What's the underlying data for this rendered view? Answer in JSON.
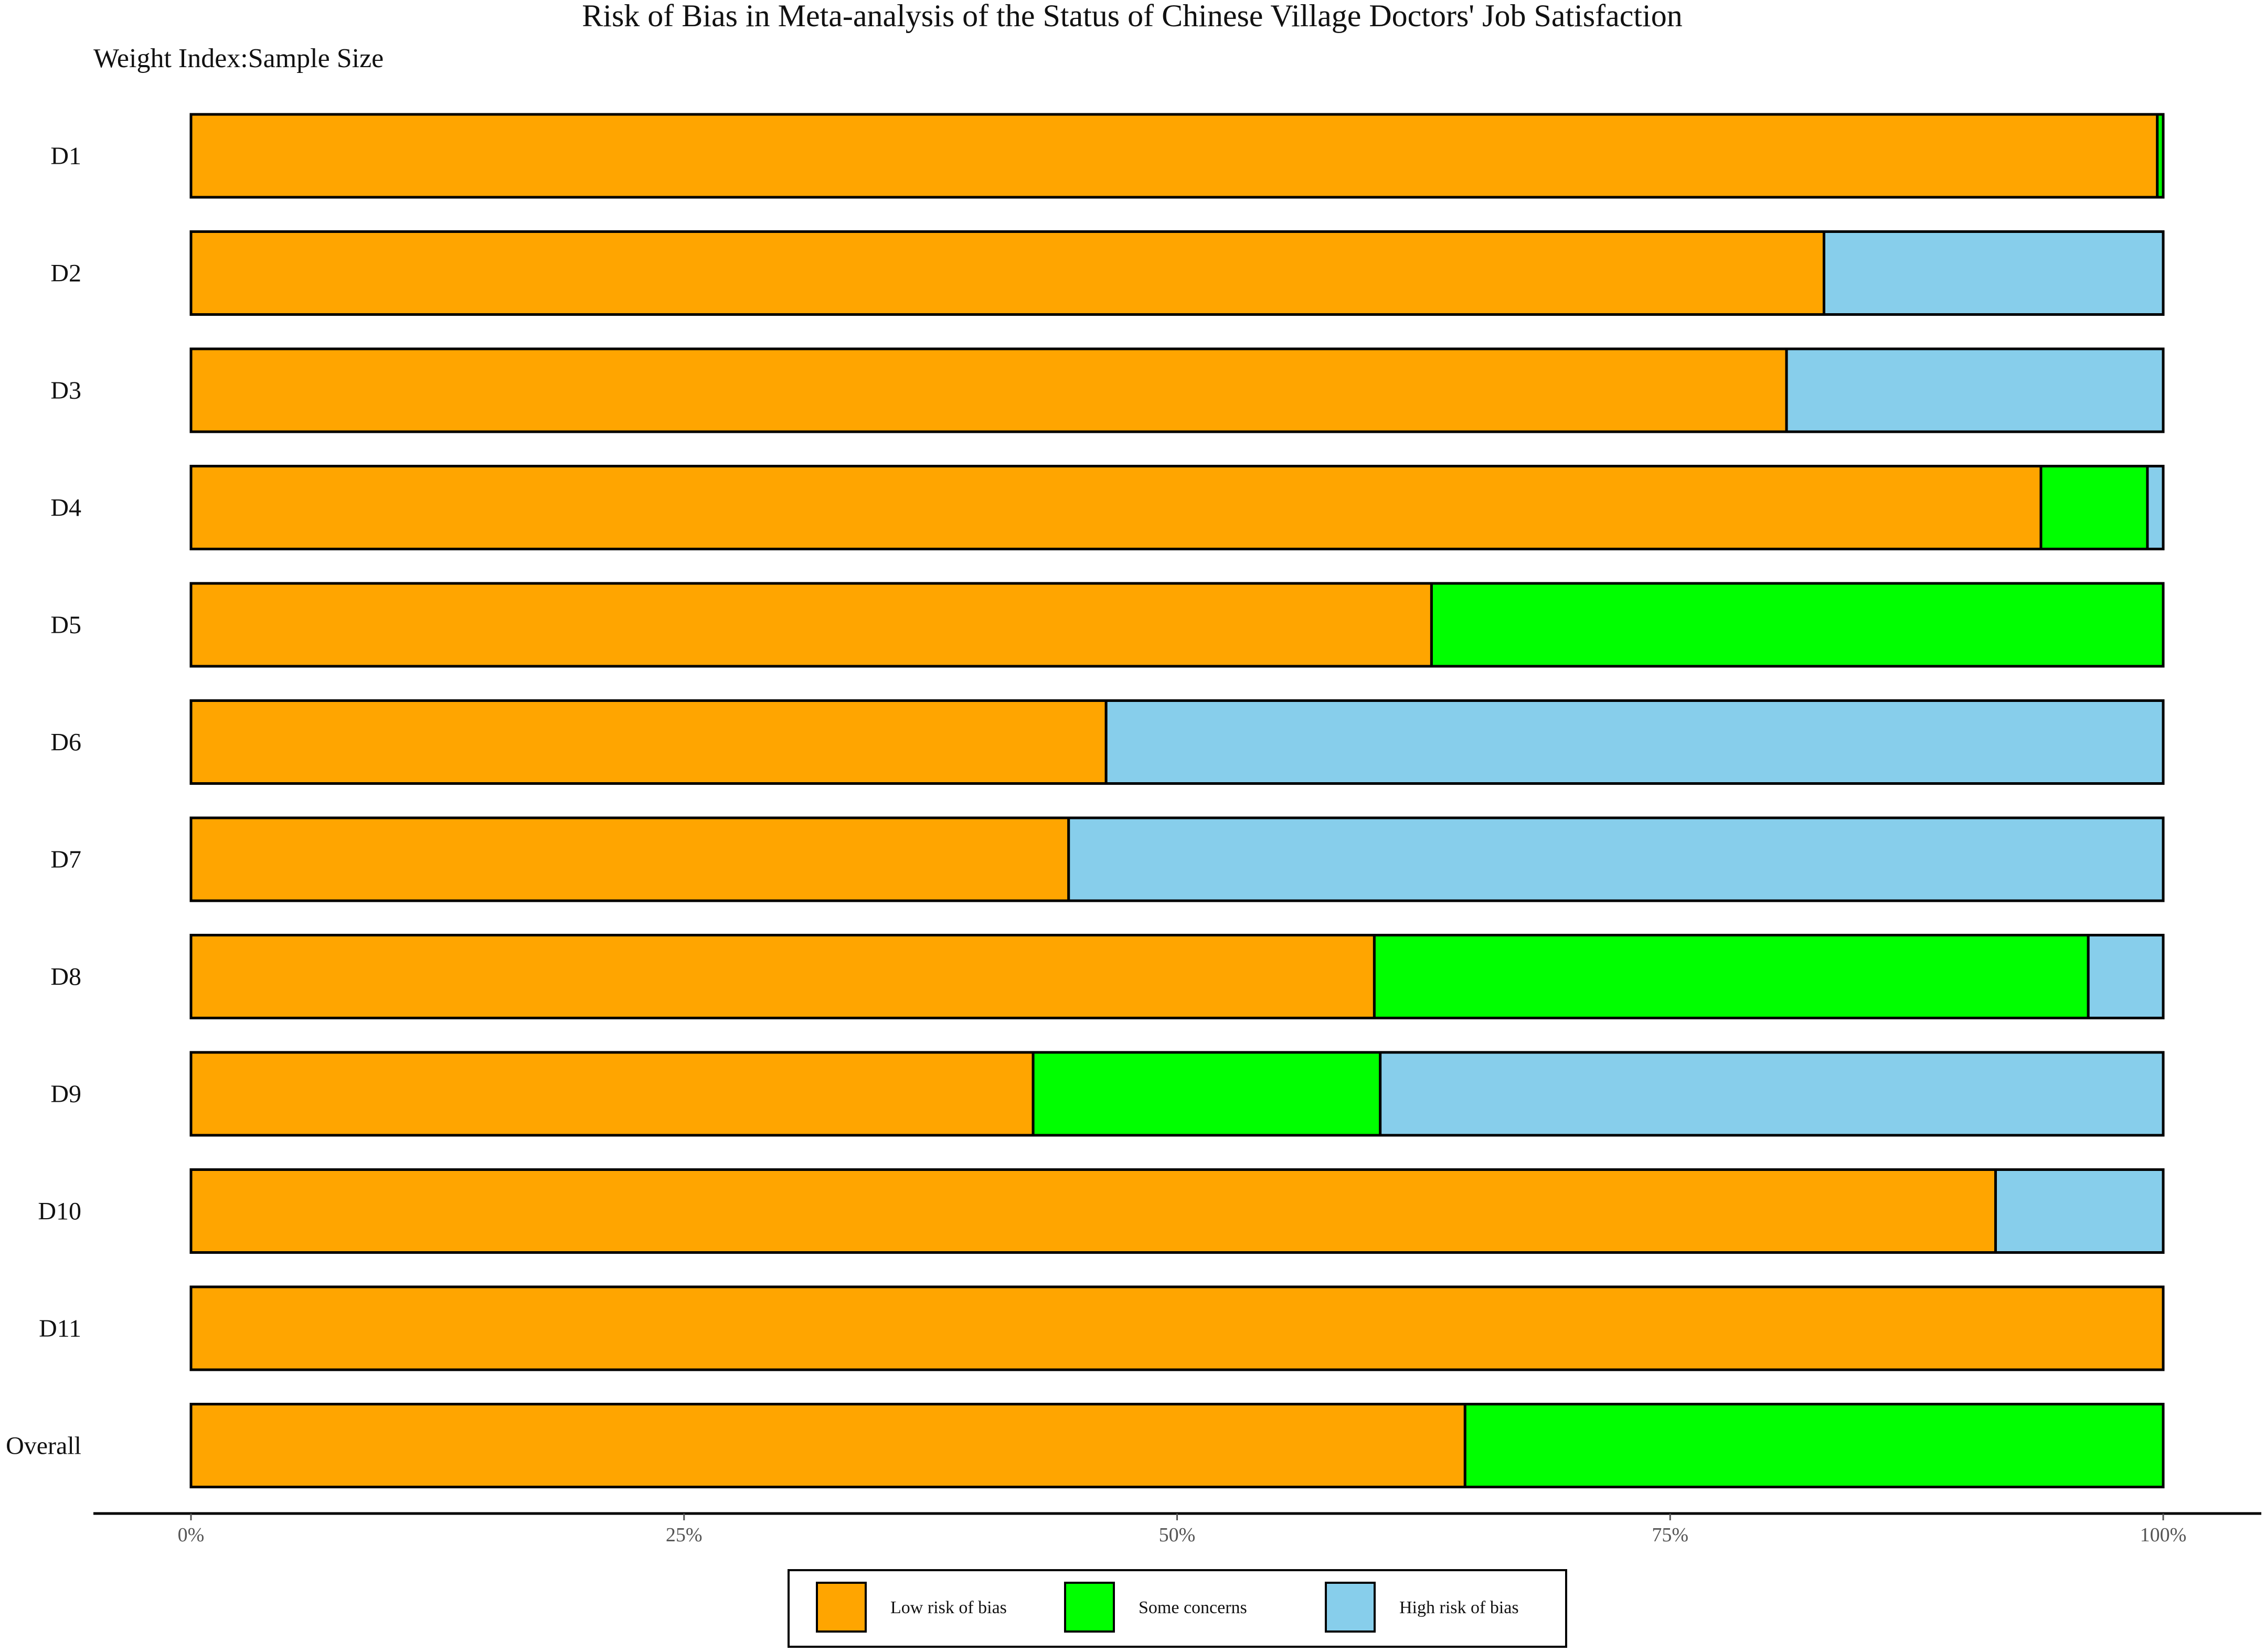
{
  "chart_data": {
    "type": "bar",
    "orientation": "horizontal",
    "stacked": true,
    "title": "Risk of Bias in Meta-analysis of the Status of Chinese Village Doctors' Job Satisfaction",
    "subtitle": "Weight Index:Sample Size",
    "categories": [
      "D1",
      "D2",
      "D3",
      "D4",
      "D5",
      "D6",
      "D7",
      "D8",
      "D9",
      "D10",
      "D11",
      "Overall"
    ],
    "series": [
      {
        "name": "Low risk of bias",
        "color": "#FFA500",
        "values": [
          99.7,
          82.8,
          80.9,
          93.8,
          62.9,
          46.4,
          44.5,
          60.0,
          42.7,
          91.5,
          100.0,
          64.6
        ]
      },
      {
        "name": "Some concerns",
        "color": "#00FF00",
        "values": [
          0.3,
          0.0,
          0.0,
          5.4,
          37.1,
          0.0,
          0.0,
          36.2,
          17.6,
          0.0,
          0.0,
          35.4
        ]
      },
      {
        "name": "High risk of bias",
        "color": "#87CEEB",
        "values": [
          0.0,
          17.2,
          19.1,
          0.8,
          0.0,
          53.6,
          55.5,
          3.8,
          39.7,
          8.5,
          0.0,
          0.0
        ]
      }
    ],
    "xlim": [
      0,
      100
    ],
    "xticks": [
      0,
      25,
      50,
      75,
      100
    ],
    "xtick_labels": [
      "0%",
      "25%",
      "50%",
      "75%",
      "100%"
    ],
    "grid": false,
    "legend_position": "bottom"
  }
}
